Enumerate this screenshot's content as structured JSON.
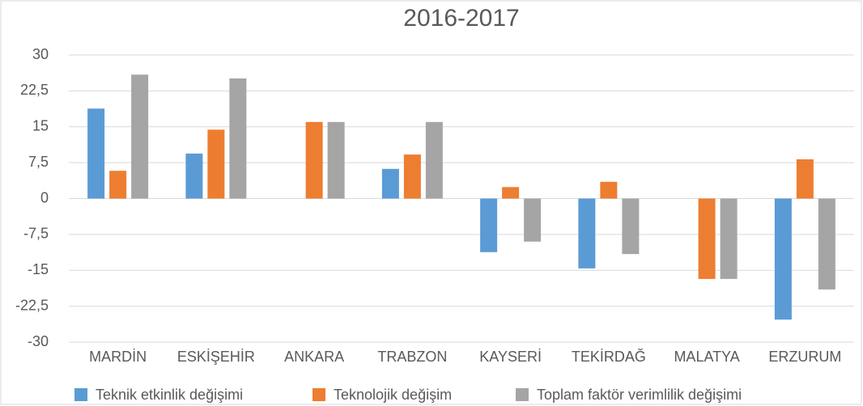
{
  "chart_data": {
    "type": "bar",
    "title": "2016-2017",
    "categories": [
      "MARDİN",
      "ESKİŞEHİR",
      "ANKARA",
      "TRABZON",
      "KAYSERİ",
      "TEKİRDAĞ",
      "MALATYA",
      "ERZURUM"
    ],
    "series": [
      {
        "name": "Teknik etkinlik değişimi",
        "color": "#5b9bd5",
        "values": [
          18.8,
          9.4,
          0,
          6.2,
          -11.2,
          -14.6,
          0,
          -25.3
        ]
      },
      {
        "name": "Teknolojik değişim",
        "color": "#ed7d31",
        "values": [
          5.8,
          14.4,
          16,
          9.2,
          2.4,
          3.5,
          -16.8,
          8.2
        ]
      },
      {
        "name": "Toplam faktör verimlilik değişimi",
        "color": "#a5a5a5",
        "values": [
          25.9,
          25.1,
          16,
          16,
          -9,
          -11.6,
          -16.8,
          -19
        ]
      }
    ],
    "ylim": [
      -30,
      30
    ],
    "yticks": [
      30,
      {
        "value": 22.5,
        "label": "22,5"
      },
      15,
      {
        "value": 7.5,
        "label": "7,5"
      },
      0,
      {
        "value": -7.5,
        "label": "-7,5"
      },
      -15,
      {
        "value": -22.5,
        "label": "-22,5"
      },
      -30
    ],
    "grid": true,
    "legend": "bottom"
  }
}
